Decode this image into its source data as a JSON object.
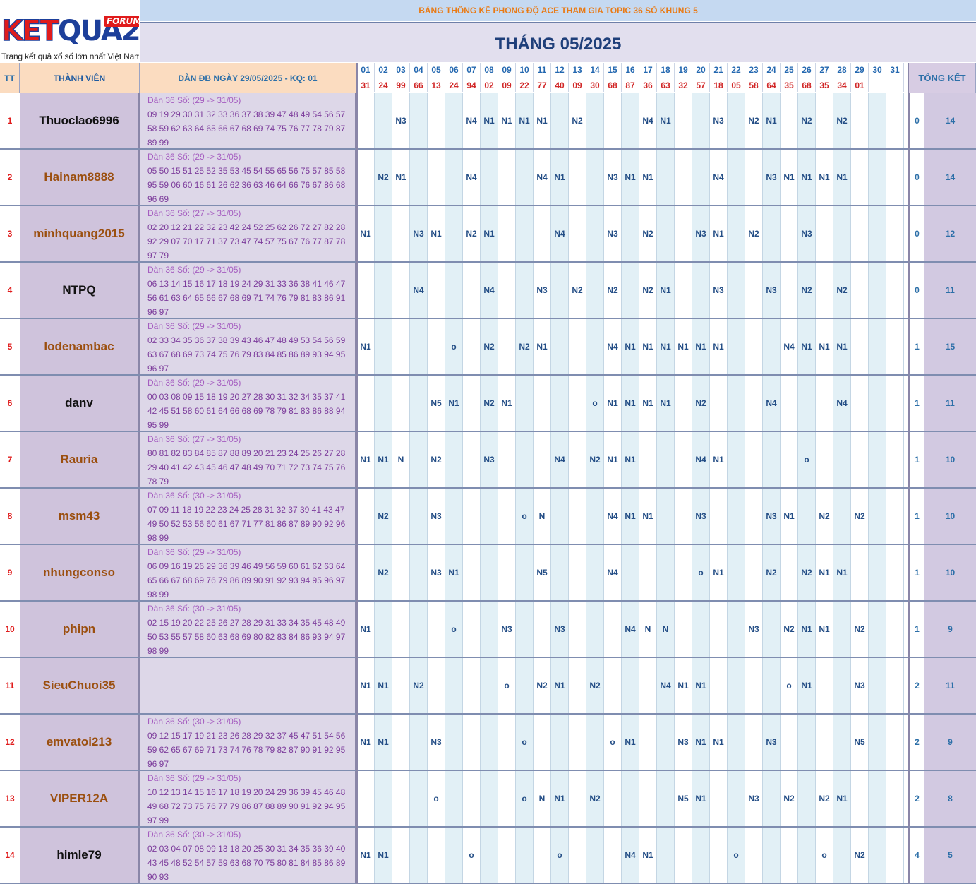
{
  "logo": {
    "text_red": "KET",
    "text_blue": "QUA2",
    "forum": "FORUM",
    "slogan": "Trang kết quả xổ số lớn nhất Việt Nam"
  },
  "header": {
    "banner": "BẢNG THỐNG KÊ PHONG ĐỘ ACE THAM GIA TOPIC 36 SỐ KHUNG 5",
    "month_title": "THÁNG 05/2025"
  },
  "columns": {
    "tt": "TT",
    "member": "THÀNH VIÊN",
    "dan": "DÀN ĐB NGÀY 29/05/2025 - KQ: 01",
    "total": "TỔNG KẾT"
  },
  "days": [
    "01",
    "02",
    "03",
    "04",
    "05",
    "06",
    "07",
    "08",
    "09",
    "10",
    "11",
    "12",
    "13",
    "14",
    "15",
    "16",
    "17",
    "18",
    "19",
    "20",
    "21",
    "22",
    "23",
    "24",
    "25",
    "26",
    "27",
    "28",
    "29",
    "30",
    "31"
  ],
  "results": [
    "31",
    "24",
    "99",
    "66",
    "13",
    "24",
    "94",
    "02",
    "09",
    "22",
    "77",
    "40",
    "09",
    "30",
    "68",
    "87",
    "36",
    "63",
    "32",
    "57",
    "18",
    "05",
    "58",
    "64",
    "35",
    "68",
    "35",
    "34",
    "01",
    "",
    ""
  ],
  "colors": {
    "name_black": "#111111",
    "name_brown": "#9b4f0f"
  },
  "rows": [
    {
      "tt": "1",
      "name": "Thuoclao6996",
      "name_color": "#111111",
      "dan": [
        "Dàn 36 Số: (29 -> 31/05)",
        "09 19 29 30 31 32 33 36 37 38 39 47 48 49 54 56 57",
        "58 59 62 63 64 65 66 67 68 69 74 75 76 77 78 79 87",
        "89 99"
      ],
      "cells": [
        "",
        "",
        "N3",
        "",
        "",
        "",
        "N4",
        "N1",
        "N1",
        "N1",
        "N1",
        "",
        "N2",
        "",
        "",
        "",
        "N4",
        "N1",
        "",
        "",
        "N3",
        "",
        "N2",
        "N1",
        "",
        "N2",
        "",
        "N2",
        "",
        "",
        ""
      ],
      "sc": "0",
      "total": "14"
    },
    {
      "tt": "2",
      "name": "Hainam8888",
      "name_color": "#9b4f0f",
      "dan": [
        "Dàn 36 Số: (29 -> 31/05)",
        "05 50 15 51 25 52 35 53 45 54 55 65 56 75 57 85 58",
        "95 59 06 60 16 61 26 62 36 63 46 64 66 76 67 86 68",
        "96 69"
      ],
      "cells": [
        "",
        "N2",
        "N1",
        "",
        "",
        "",
        "N4",
        "",
        "",
        "",
        "N4",
        "N1",
        "",
        "",
        "N3",
        "N1",
        "N1",
        "",
        "",
        "",
        "N4",
        "",
        "",
        "N3",
        "N1",
        "N1",
        "N1",
        "N1",
        "",
        "",
        ""
      ],
      "sc": "0",
      "total": "14"
    },
    {
      "tt": "3",
      "name": "minhquang2015",
      "name_color": "#9b4f0f",
      "dan": [
        "Dàn 36 Số: (27 -> 31/05)",
        "02 20 12 21 22 32 23 42 24 52 25 62 26 72 27 82 28",
        "92 29 07 70 17 71 37 73 47 74 57 75 67 76 77 87 78",
        "97 79"
      ],
      "cells": [
        "N1",
        "",
        "",
        "N3",
        "N1",
        "",
        "N2",
        "N1",
        "",
        "",
        "",
        "N4",
        "",
        "",
        "N3",
        "",
        "N2",
        "",
        "",
        "N3",
        "N1",
        "",
        "N2",
        "",
        "",
        "N3",
        "",
        "",
        "",
        "",
        ""
      ],
      "sc": "0",
      "total": "12"
    },
    {
      "tt": "4",
      "name": "NTPQ",
      "name_color": "#111111",
      "dan": [
        "Dàn 36 Số: (29 -> 31/05)",
        "06 13 14 15 16 17 18 19 24 29 31 33 36 38 41 46 47",
        "56 61 63 64 65 66 67 68 69 71 74 76 79 81 83 86 91",
        "96 97"
      ],
      "cells": [
        "",
        "",
        "",
        "N4",
        "",
        "",
        "",
        "N4",
        "",
        "",
        "N3",
        "",
        "N2",
        "",
        "N2",
        "",
        "N2",
        "N1",
        "",
        "",
        "N3",
        "",
        "",
        "N3",
        "",
        "N2",
        "",
        "N2",
        "",
        "",
        ""
      ],
      "sc": "0",
      "total": "11"
    },
    {
      "tt": "5",
      "name": "lodenambac",
      "name_color": "#9b4f0f",
      "dan": [
        "Dàn 36 Số: (29 -> 31/05)",
        "02 33 34 35 36 37 38 39 43 46 47 48 49 53 54 56 59",
        "63 67 68 69 73 74 75 76 79 83 84 85 86 89 93 94 95",
        "96 97"
      ],
      "cells": [
        "N1",
        "",
        "",
        "",
        "",
        "o",
        "",
        "N2",
        "",
        "N2",
        "N1",
        "",
        "",
        "",
        "N4",
        "N1",
        "N1",
        "N1",
        "N1",
        "N1",
        "N1",
        "",
        "",
        "",
        "N4",
        "N1",
        "N1",
        "N1",
        "",
        "",
        ""
      ],
      "sc": "1",
      "total": "15"
    },
    {
      "tt": "6",
      "name": "danv",
      "name_color": "#111111",
      "dan": [
        "Dàn 36 Số: (29 -> 31/05)",
        "00 03 08 09 15 18 19 20 27 28 30 31 32 34 35 37 41",
        "42 45 51 58 60 61 64 66 68 69 78 79 81 83 86 88 94",
        "95 99"
      ],
      "cells": [
        "",
        "",
        "",
        "",
        "N5",
        "N1",
        "",
        "N2",
        "N1",
        "",
        "",
        "",
        "",
        "o",
        "N1",
        "N1",
        "N1",
        "N1",
        "",
        "N2",
        "",
        "",
        "",
        "N4",
        "",
        "",
        "",
        "N4",
        "",
        "",
        ""
      ],
      "sc": "1",
      "total": "11"
    },
    {
      "tt": "7",
      "name": "Rauria",
      "name_color": "#9b4f0f",
      "dan": [
        "Dàn 36 Số: (27 -> 31/05)",
        "80 81 82 83 84 85 87 88 89 20 21 23 24 25 26 27 28",
        "29 40 41 42 43 45 46 47 48 49 70 71 72 73 74 75 76",
        "78 79"
      ],
      "cells": [
        "N1",
        "N1",
        "N",
        "",
        "N2",
        "",
        "",
        "N3",
        "",
        "",
        "",
        "N4",
        "",
        "N2",
        "N1",
        "N1",
        "",
        "",
        "",
        "N4",
        "N1",
        "",
        "",
        "",
        "",
        "o",
        "",
        "",
        "",
        "",
        ""
      ],
      "sc": "1",
      "total": "10"
    },
    {
      "tt": "8",
      "name": "msm43",
      "name_color": "#9b4f0f",
      "dan": [
        "Dàn 36 Số: (30 -> 31/05)",
        "07 09 11 18 19 22 23 24 25 28 31 32 37 39 41 43 47",
        "49 50 52 53 56 60 61 67 71 77 81 86 87 89 90 92 96",
        "98 99"
      ],
      "cells": [
        "",
        "N2",
        "",
        "",
        "N3",
        "",
        "",
        "",
        "",
        "o",
        "N",
        "",
        "",
        "",
        "N4",
        "N1",
        "N1",
        "",
        "",
        "N3",
        "",
        "",
        "",
        "N3",
        "N1",
        "",
        "N2",
        "",
        "N2",
        "",
        ""
      ],
      "sc": "1",
      "total": "10"
    },
    {
      "tt": "9",
      "name": "nhungconso",
      "name_color": "#9b4f0f",
      "dan": [
        "Dàn 36 Số: (29 -> 31/05)",
        "06 09 16 19 26 29 36 39 46 49 56 59 60 61 62 63 64",
        "65 66 67 68 69 76 79 86 89 90 91 92 93 94 95 96 97",
        "98 99"
      ],
      "cells": [
        "",
        "N2",
        "",
        "",
        "N3",
        "N1",
        "",
        "",
        "",
        "",
        "N5",
        "",
        "",
        "",
        "N4",
        "",
        "",
        "",
        "",
        "o",
        "N1",
        "",
        "",
        "N2",
        "",
        "N2",
        "N1",
        "N1",
        "",
        "",
        ""
      ],
      "sc": "1",
      "total": "10"
    },
    {
      "tt": "10",
      "name": "phipn",
      "name_color": "#9b4f0f",
      "dan": [
        "Dàn 36 Số: (30 -> 31/05)",
        "02 15 19 20 22 25 26 27 28 29 31 33 34 35 45 48 49",
        "50 53 55 57 58 60 63 68 69 80 82 83 84 86 93 94 97",
        "98 99"
      ],
      "cells": [
        "N1",
        "",
        "",
        "",
        "",
        "o",
        "",
        "",
        "N3",
        "",
        "",
        "N3",
        "",
        "",
        "",
        "N4",
        "N",
        "N",
        "",
        "",
        "",
        "",
        "N3",
        "",
        "N2",
        "N1",
        "N1",
        "",
        "N2",
        "",
        ""
      ],
      "sc": "1",
      "total": "9"
    },
    {
      "tt": "11",
      "name": "SieuChuoi35",
      "name_color": "#9b4f0f",
      "dan": [],
      "cells": [
        "N1",
        "N1",
        "",
        "N2",
        "",
        "",
        "",
        "",
        "o",
        "",
        "N2",
        "N1",
        "",
        "N2",
        "",
        "",
        "",
        "N4",
        "N1",
        "N1",
        "",
        "",
        "",
        "",
        "o",
        "N1",
        "",
        "",
        "N3",
        "",
        ""
      ],
      "sc": "2",
      "total": "11"
    },
    {
      "tt": "12",
      "name": "emvatoi213",
      "name_color": "#9b4f0f",
      "dan": [
        "Dàn 36 Số: (30 -> 31/05)",
        "09 12 15 17 19 21 23 26 28 29 32 37 45 47 51 54 56",
        "59 62 65 67 69 71 73 74 76 78 79 82 87 90 91 92 95",
        "96 97"
      ],
      "cells": [
        "N1",
        "N1",
        "",
        "",
        "N3",
        "",
        "",
        "",
        "",
        "o",
        "",
        "",
        "",
        "",
        "o",
        "N1",
        "",
        "",
        "N3",
        "N1",
        "N1",
        "",
        "",
        "N3",
        "",
        "",
        "",
        "",
        "N5",
        "",
        ""
      ],
      "sc": "2",
      "total": "9"
    },
    {
      "tt": "13",
      "name": "VIPER12A",
      "name_color": "#9b4f0f",
      "dan": [
        "Dàn 36 Số: (29 -> 31/05)",
        "10 12 13 14 15 16 17 18 19 20 24 29 36 39 45 46 48",
        "49 68 72 73 75 76 77 79 86 87 88 89 90 91 92 94 95",
        "97 99"
      ],
      "cells": [
        "",
        "",
        "",
        "",
        "o",
        "",
        "",
        "",
        "",
        "o",
        "N",
        "N1",
        "",
        "N2",
        "",
        "",
        "",
        "",
        "N5",
        "N1",
        "",
        "",
        "N3",
        "",
        "N2",
        "",
        "N2",
        "N1",
        "",
        "",
        ""
      ],
      "sc": "2",
      "total": "8"
    },
    {
      "tt": "14",
      "name": "himle79",
      "name_color": "#111111",
      "dan": [
        "Dàn 36 Số: (30 -> 31/05)",
        "02 03 04 07 08 09 13 18 20 25 30 31 34 35 36 39 40",
        "43 45 48 52 54 57 59 63 68 70 75 80 81 84 85 86 89",
        "90 93"
      ],
      "cells": [
        "N1",
        "N1",
        "",
        "",
        "",
        "",
        "o",
        "",
        "",
        "",
        "",
        "o",
        "",
        "",
        "",
        "N4",
        "N1",
        "",
        "",
        "",
        "",
        "o",
        "",
        "",
        "",
        "",
        "o",
        "",
        "N2",
        "",
        ""
      ],
      "sc": "4",
      "total": "5"
    }
  ]
}
